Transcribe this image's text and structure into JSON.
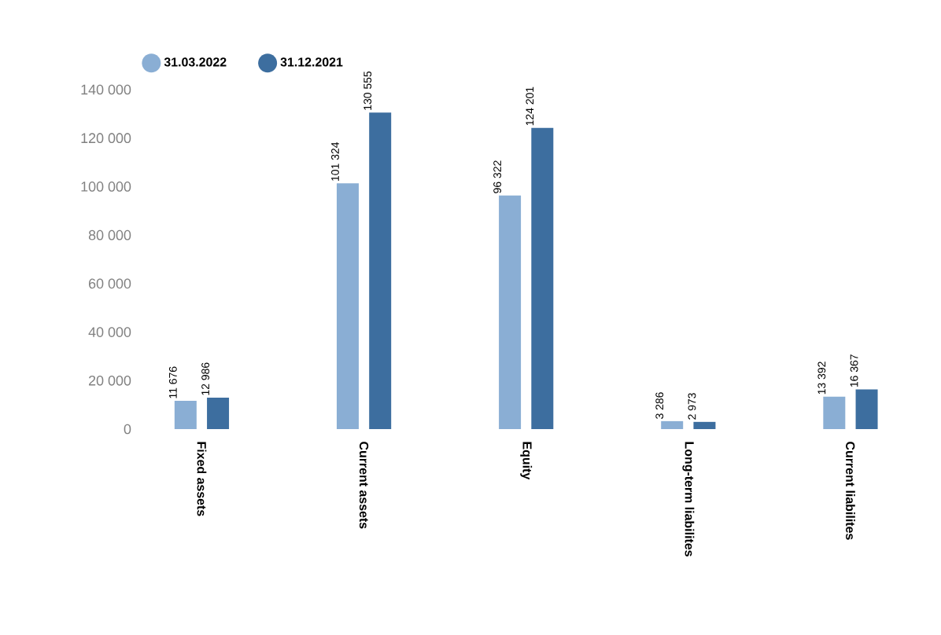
{
  "chart_data": {
    "type": "bar",
    "categories": [
      "Fixed assets",
      "Current assets",
      "Equity",
      "Long-term liabilites",
      "Current liabilites"
    ],
    "series": [
      {
        "name": "31.03.2022",
        "color": "#8aaed4",
        "values": [
          11676,
          101324,
          96322,
          3286,
          13392
        ],
        "value_labels": [
          "11 676",
          "101 324",
          "96 322",
          "3 286",
          "13 392"
        ]
      },
      {
        "name": "31.12.2021",
        "color": "#3d6e9f",
        "values": [
          12986,
          130555,
          124201,
          2973,
          16367
        ],
        "value_labels": [
          "12 986",
          "130 555",
          "124 201",
          "2 973",
          "16 367"
        ]
      }
    ],
    "ylim": [
      0,
      140000
    ],
    "yticks": [
      {
        "value": 0,
        "label": "0"
      },
      {
        "value": 20000,
        "label": "20 000"
      },
      {
        "value": 40000,
        "label": "40 000"
      },
      {
        "value": 60000,
        "label": "60 000"
      },
      {
        "value": 80000,
        "label": "80 000"
      },
      {
        "value": 100000,
        "label": "100 000"
      },
      {
        "value": 120000,
        "label": "120 000"
      },
      {
        "value": 140000,
        "label": "140 000"
      }
    ],
    "grid": false,
    "legend": "top left"
  }
}
